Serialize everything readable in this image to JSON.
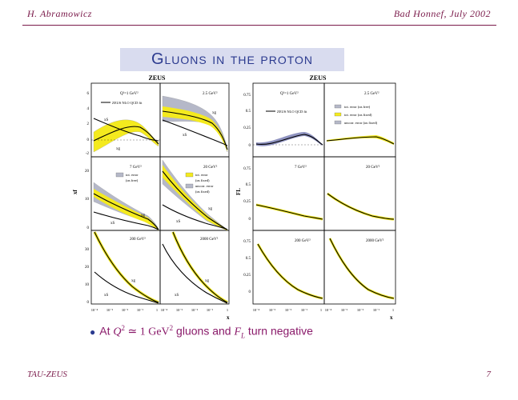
{
  "header": {
    "author": "H. Abramowicz",
    "venue": "Bad Honnef, July 2002"
  },
  "title": "Gluons in the proton",
  "left_figure": {
    "experiment": "ZEUS",
    "ylabel": "xf",
    "xlabel": "x",
    "panels": [
      {
        "q2": "Q²=1 GeV²",
        "legend": "ZEUS NLO QCD fit",
        "labels": [
          "xS",
          "xg"
        ]
      },
      {
        "q2": "2.5 GeV²",
        "labels": [
          "xg",
          "xS"
        ]
      },
      {
        "q2": "7 GeV²",
        "legend": [
          "tot. error",
          "(αs free)"
        ],
        "labels": [
          "xg",
          "xS"
        ]
      },
      {
        "q2": "20 GeV²",
        "legend": [
          "tot. error",
          "(αs fixed)",
          "uncorr. error",
          "(αs fixed)"
        ],
        "labels": [
          "xg",
          "xS"
        ]
      },
      {
        "q2": "200 GeV²",
        "labels": [
          "xg",
          "xS"
        ]
      },
      {
        "q2": "2000 GeV²",
        "labels": [
          "xg",
          "xS"
        ]
      }
    ],
    "yticks_row1": [
      "6",
      "4",
      "2",
      "0",
      "-2"
    ],
    "yticks_row2": [
      "20",
      "10",
      "0"
    ],
    "yticks_row3": [
      "30",
      "20",
      "10",
      "0"
    ],
    "xticks": [
      "10⁻⁴",
      "10⁻³",
      "10⁻²",
      "10⁻¹",
      "1"
    ]
  },
  "right_figure": {
    "experiment": "ZEUS",
    "ylabel": "FL",
    "xlabel": "x",
    "panels": [
      {
        "q2": "Q²=1 GeV²",
        "legend": "ZEUS NLO QCD fit"
      },
      {
        "q2": "2.5 GeV²",
        "legend": [
          "tot. error (αs free)",
          "tot. error (αs fixed)",
          "uncorr. error (αs fixed)"
        ]
      },
      {
        "q2": "7 GeV²"
      },
      {
        "q2": "20 GeV²"
      },
      {
        "q2": "200 GeV²"
      },
      {
        "q2": "2000 GeV²"
      }
    ],
    "yticks": [
      "0.75",
      "0.5",
      "0.25",
      "0"
    ],
    "xticks": [
      "10⁻⁴",
      "10⁻³",
      "10⁻²",
      "10⁻¹",
      "1"
    ]
  },
  "bullet": {
    "prefix": "At",
    "q": "Q",
    "sup2": "2",
    "sim": " ≃ 1 GeV",
    "sup2b": "2",
    "mid": " gluons and ",
    "fl": "F",
    "fl_sub": "L",
    "suffix": " turn negative"
  },
  "footer": {
    "left": "TAU-ZEUS",
    "page": "7"
  },
  "colors": {
    "accent": "#7a1a4a",
    "title_bg": "#d9dcef",
    "title_text": "#2b3a8f",
    "band_yellow": "#f4ea1e",
    "band_grey": "#b5b8c8"
  }
}
